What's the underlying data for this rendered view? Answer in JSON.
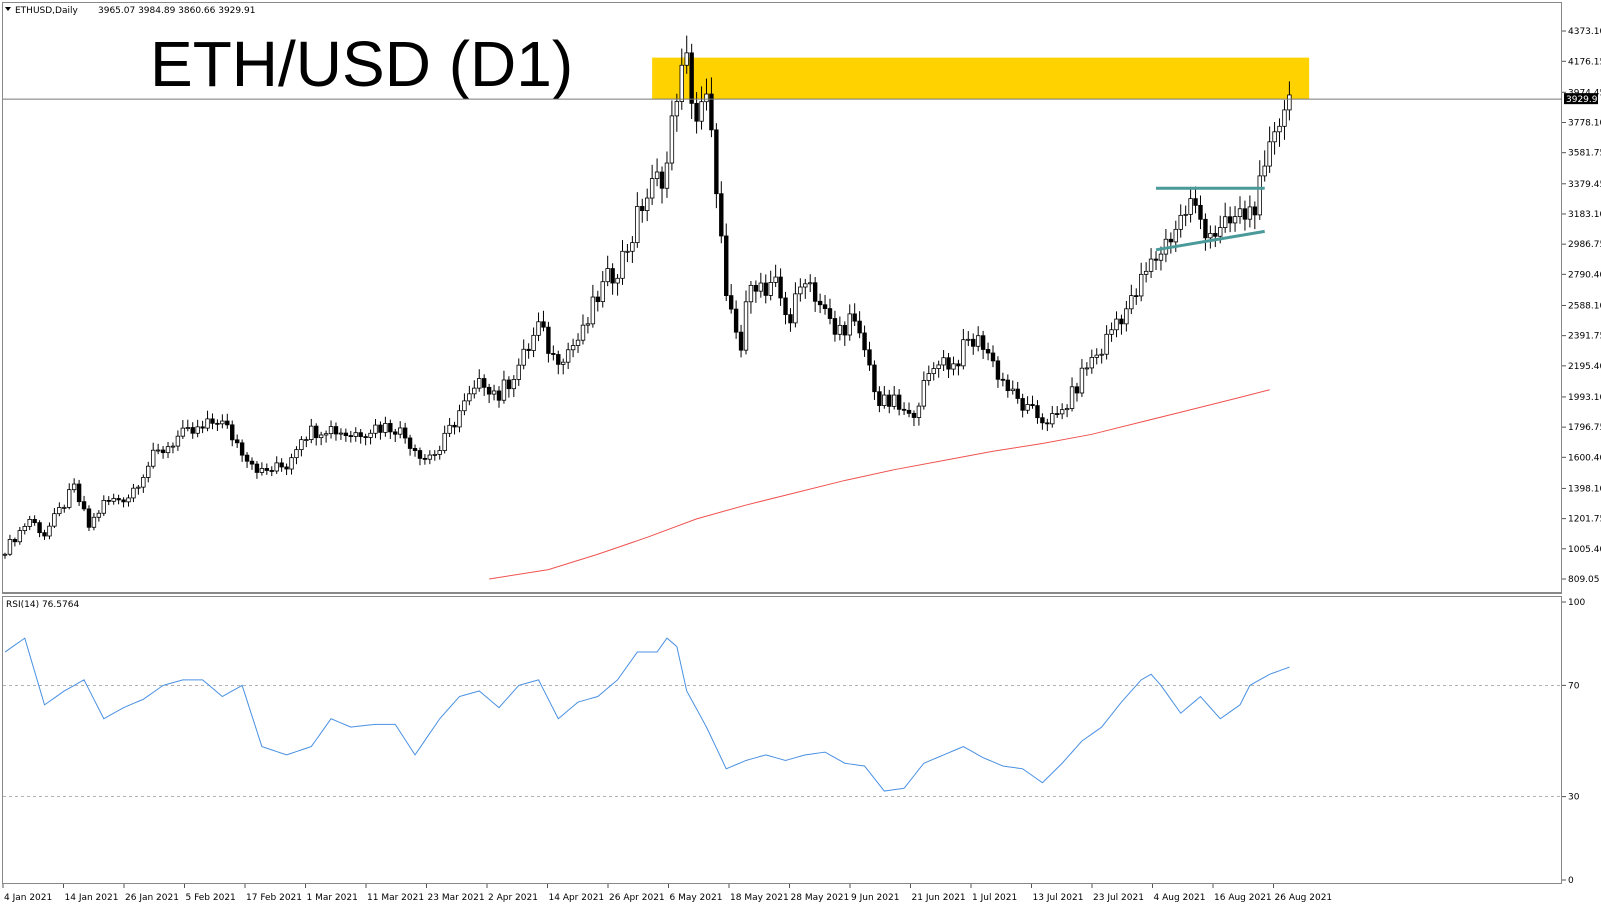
{
  "header": {
    "symbol_line": "ETHUSD,Daily",
    "ohlc_line": "3965.07 3984.89 3860.66 3929.91"
  },
  "overlay_title": "ETH/USD (D1)",
  "price_label": "3929.91",
  "rsi_label": "RSI(14) 76.5764",
  "colors": {
    "bull_fill": "#ffffff",
    "bear_fill": "#000000",
    "candle_stroke": "#000000",
    "ma": "#ef5350",
    "rsi": "#4a90e2",
    "zone": "#ffd200",
    "channel": "#4a9a9a",
    "grid": "#999999"
  },
  "chart_data": [
    {
      "type": "candlestick",
      "title": "",
      "ylim": [
        809.05,
        4450
      ],
      "y_ticks": [
        "4373.10",
        "4176.15",
        "3974.45",
        "3778.10",
        "3581.75",
        "3379.45",
        "3183.10",
        "2986.75",
        "2790.40",
        "2588.10",
        "2391.75",
        "2195.40",
        "1993.10",
        "1796.75",
        "1600.40",
        "1398.10",
        "1201.75",
        "1005.40",
        "809.05"
      ],
      "x_ticks": [
        "4 Jan 2021",
        "14 Jan 2021",
        "26 Jan 2021",
        "5 Feb 2021",
        "17 Feb 2021",
        "1 Mar 2021",
        "11 Mar 2021",
        "23 Mar 2021",
        "2 Apr 2021",
        "14 Apr 2021",
        "26 Apr 2021",
        "6 May 2021",
        "18 May 2021",
        "28 May 2021",
        "9 Jun 2021",
        "21 Jun 2021",
        "1 Jul 2021",
        "13 Jul 2021",
        "23 Jul 2021",
        "4 Aug 2021",
        "16 Aug 2021",
        "26 Aug 2021"
      ],
      "close_anchors": [
        [
          0,
          1000
        ],
        [
          5,
          1200
        ],
        [
          8,
          1100
        ],
        [
          11,
          1250
        ],
        [
          14,
          1400
        ],
        [
          17,
          1150
        ],
        [
          20,
          1300
        ],
        [
          25,
          1350
        ],
        [
          30,
          1600
        ],
        [
          35,
          1730
        ],
        [
          40,
          1780
        ],
        [
          43,
          1850
        ],
        [
          45,
          1780
        ],
        [
          48,
          1650
        ],
        [
          52,
          1500
        ],
        [
          57,
          1550
        ],
        [
          60,
          1750
        ],
        [
          65,
          1800
        ],
        [
          70,
          1750
        ],
        [
          75,
          1800
        ],
        [
          79,
          1800
        ],
        [
          85,
          1600
        ],
        [
          88,
          1650
        ],
        [
          92,
          1900
        ],
        [
          97,
          2100
        ],
        [
          100,
          2000
        ],
        [
          105,
          2250
        ],
        [
          108,
          2450
        ],
        [
          111,
          2250
        ],
        [
          114,
          2300
        ],
        [
          117,
          2400
        ],
        [
          120,
          2650
        ],
        [
          123,
          2800
        ],
        [
          125,
          2900
        ],
        [
          127,
          3050
        ],
        [
          129,
          3250
        ],
        [
          132,
          3400
        ],
        [
          134,
          3500
        ],
        [
          136,
          4000
        ],
        [
          138,
          4150
        ],
        [
          140,
          3800
        ],
        [
          142,
          3900
        ],
        [
          144,
          3400
        ],
        [
          146,
          2600
        ],
        [
          149,
          2300
        ],
        [
          151,
          2800
        ],
        [
          154,
          2650
        ],
        [
          156,
          2700
        ],
        [
          159,
          2500
        ],
        [
          162,
          2800
        ],
        [
          165,
          2600
        ],
        [
          168,
          2400
        ],
        [
          171,
          2500
        ],
        [
          174,
          2300
        ],
        [
          177,
          1950
        ],
        [
          180,
          1950
        ],
        [
          183,
          1850
        ],
        [
          186,
          2050
        ],
        [
          189,
          2250
        ],
        [
          192,
          2200
        ],
        [
          195,
          2350
        ],
        [
          198,
          2350
        ],
        [
          201,
          2150
        ],
        [
          204,
          2000
        ],
        [
          207,
          1900
        ],
        [
          210,
          1850
        ],
        [
          213,
          1850
        ],
        [
          216,
          2000
        ],
        [
          219,
          2200
        ],
        [
          222,
          2300
        ],
        [
          225,
          2500
        ],
        [
          228,
          2600
        ],
        [
          231,
          2800
        ],
        [
          234,
          2950
        ],
        [
          237,
          3100
        ],
        [
          240,
          3250
        ],
        [
          243,
          3100
        ],
        [
          246,
          3050
        ],
        [
          249,
          3150
        ],
        [
          252,
          3200
        ],
        [
          255,
          3400
        ],
        [
          257,
          3750
        ],
        [
          259,
          3900
        ],
        [
          260,
          3930
        ]
      ],
      "ma_200": [
        [
          98,
          809
        ],
        [
          110,
          870
        ],
        [
          120,
          970
        ],
        [
          130,
          1080
        ],
        [
          140,
          1200
        ],
        [
          150,
          1290
        ],
        [
          160,
          1370
        ],
        [
          170,
          1450
        ],
        [
          180,
          1520
        ],
        [
          190,
          1580
        ],
        [
          200,
          1640
        ],
        [
          210,
          1690
        ],
        [
          220,
          1750
        ],
        [
          230,
          1830
        ],
        [
          240,
          1910
        ],
        [
          250,
          1990
        ],
        [
          256,
          2040
        ]
      ],
      "resistance_zone": {
        "from_index": 131,
        "to_index": 264,
        "low": 3929.91,
        "high": 4200
      },
      "channel_upper": [
        [
          233,
          3350
        ],
        [
          255,
          3350
        ]
      ],
      "channel_lower": [
        [
          233,
          2950
        ],
        [
          255,
          3070
        ]
      ]
    },
    {
      "type": "line",
      "title": "",
      "ylim": [
        0,
        100
      ],
      "y_ticks": [
        "100",
        "70",
        "30",
        "0"
      ],
      "levels": [
        70,
        30
      ],
      "rsi_anchors": [
        [
          0,
          82
        ],
        [
          4,
          87
        ],
        [
          8,
          63
        ],
        [
          12,
          68
        ],
        [
          16,
          72
        ],
        [
          20,
          58
        ],
        [
          24,
          62
        ],
        [
          28,
          65
        ],
        [
          32,
          70
        ],
        [
          36,
          72
        ],
        [
          40,
          72
        ],
        [
          44,
          66
        ],
        [
          48,
          70
        ],
        [
          52,
          48
        ],
        [
          57,
          45
        ],
        [
          62,
          48
        ],
        [
          66,
          58
        ],
        [
          70,
          55
        ],
        [
          75,
          56
        ],
        [
          79,
          56
        ],
        [
          83,
          45
        ],
        [
          88,
          58
        ],
        [
          92,
          66
        ],
        [
          96,
          68
        ],
        [
          100,
          62
        ],
        [
          104,
          70
        ],
        [
          108,
          72
        ],
        [
          112,
          58
        ],
        [
          116,
          64
        ],
        [
          120,
          66
        ],
        [
          124,
          72
        ],
        [
          128,
          82
        ],
        [
          132,
          82
        ],
        [
          134,
          87
        ],
        [
          136,
          84
        ],
        [
          138,
          68
        ],
        [
          142,
          55
        ],
        [
          146,
          40
        ],
        [
          150,
          43
        ],
        [
          154,
          45
        ],
        [
          158,
          43
        ],
        [
          162,
          45
        ],
        [
          166,
          46
        ],
        [
          170,
          42
        ],
        [
          174,
          41
        ],
        [
          178,
          32
        ],
        [
          182,
          33
        ],
        [
          186,
          42
        ],
        [
          190,
          45
        ],
        [
          194,
          48
        ],
        [
          198,
          44
        ],
        [
          202,
          41
        ],
        [
          206,
          40
        ],
        [
          210,
          35
        ],
        [
          214,
          42
        ],
        [
          218,
          50
        ],
        [
          222,
          55
        ],
        [
          226,
          64
        ],
        [
          230,
          72
        ],
        [
          232,
          74
        ],
        [
          234,
          70
        ],
        [
          238,
          60
        ],
        [
          242,
          66
        ],
        [
          246,
          58
        ],
        [
          250,
          63
        ],
        [
          252,
          70
        ],
        [
          256,
          74
        ],
        [
          260,
          76.5764
        ]
      ]
    }
  ]
}
